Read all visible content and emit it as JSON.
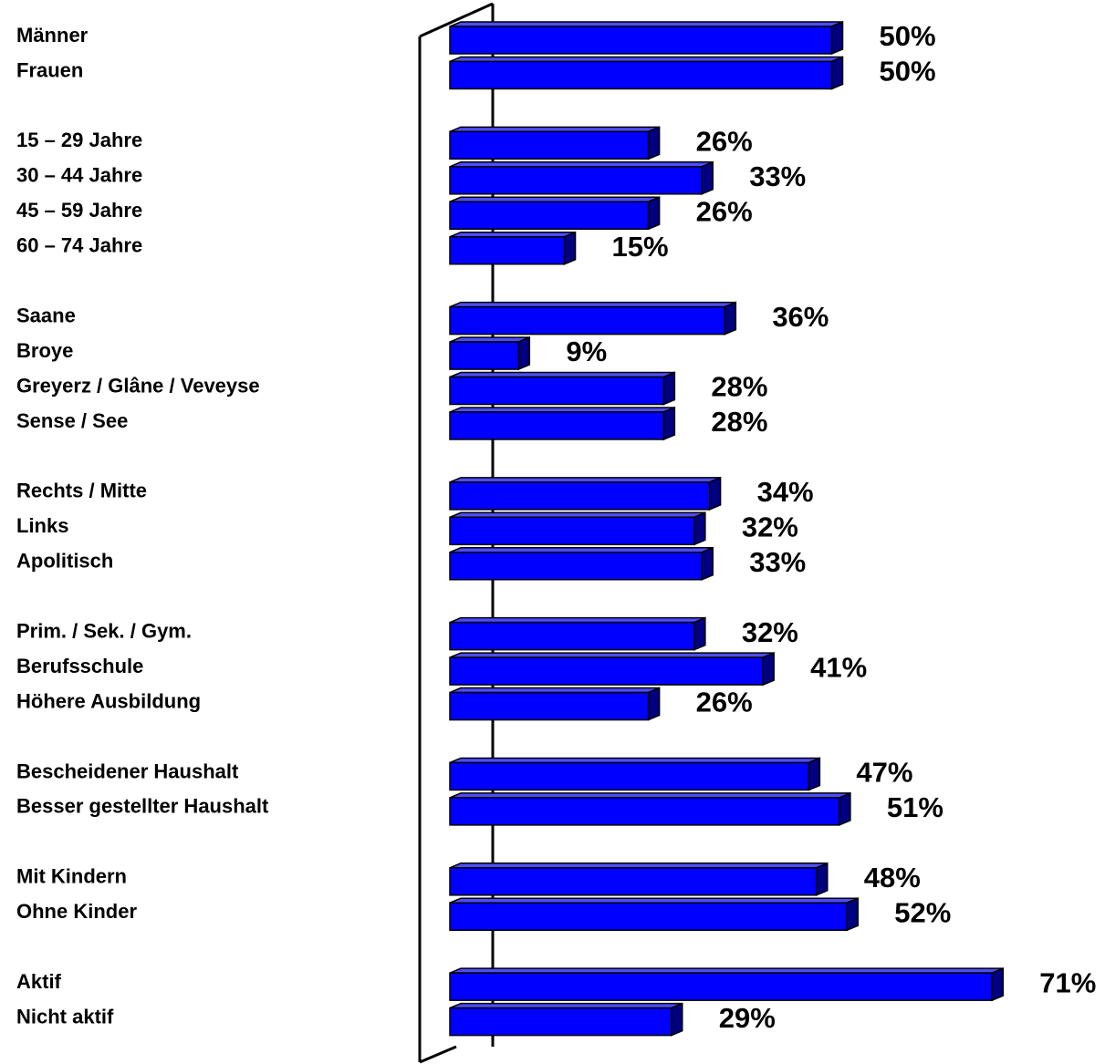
{
  "chart_data": {
    "type": "bar",
    "color": "#0000ff",
    "groups": [
      {
        "categories": [
          "Männer",
          "Frauen"
        ],
        "values": [
          50,
          50
        ],
        "value_labels": [
          "50%",
          "50%"
        ]
      },
      {
        "categories": [
          "15 – 29 Jahre",
          "30 – 44 Jahre",
          "45 – 59 Jahre",
          "60 – 74 Jahre"
        ],
        "values": [
          26,
          33,
          26,
          15
        ],
        "value_labels": [
          "26%",
          "33%",
          "26%",
          "15%"
        ]
      },
      {
        "categories": [
          "Saane",
          "Broye",
          "Greyerz / Glâne / Veveyse",
          "Sense / See"
        ],
        "values": [
          36,
          9,
          28,
          28
        ],
        "value_labels": [
          "36%",
          "9%",
          "28%",
          "28%"
        ]
      },
      {
        "categories": [
          "Rechts / Mitte",
          "Links",
          "Apolitisch"
        ],
        "values": [
          34,
          32,
          33
        ],
        "value_labels": [
          "34%",
          "32%",
          "33%"
        ]
      },
      {
        "categories": [
          "Prim. / Sek. / Gym.",
          "Berufsschule",
          "Höhere Ausbildung"
        ],
        "values": [
          32,
          41,
          26
        ],
        "value_labels": [
          "32%",
          "41%",
          "26%"
        ]
      },
      {
        "categories": [
          "Bescheidener Haushalt",
          "Besser gestellter Haushalt"
        ],
        "values": [
          47,
          51
        ],
        "value_labels": [
          "47%",
          "51%"
        ]
      },
      {
        "categories": [
          "Mit Kindern",
          "Ohne Kinder"
        ],
        "values": [
          48,
          52
        ],
        "value_labels": [
          "48%",
          "52%"
        ]
      },
      {
        "categories": [
          "Aktif",
          "Nicht aktif"
        ],
        "values": [
          71,
          29
        ],
        "value_labels": [
          "71%",
          "29%"
        ]
      }
    ]
  }
}
